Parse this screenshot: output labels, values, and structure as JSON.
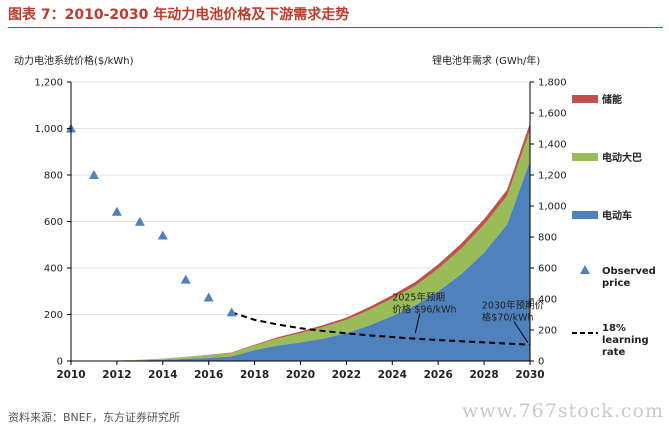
{
  "title": "图表 7：2010-2030 年动力电池价格及下游需求走势",
  "source": "资料来源：BNEF，东方证券研究所",
  "watermark": "www.767stock.com",
  "colors": {
    "title": "#c0392b",
    "storage": "#c0504d",
    "bus": "#9bbb59",
    "car": "#4f81bd",
    "marker": "#4f81bd",
    "learning": "#000000"
  },
  "chart_data": {
    "type": "area",
    "ylabel_left": "动力电池系统价格($/kWh)",
    "ylabel_right": "锂电池年需求 (GWh/年)",
    "x_ticks": [
      2010,
      2012,
      2014,
      2016,
      2018,
      2020,
      2022,
      2024,
      2026,
      2028,
      2030
    ],
    "xlim": [
      2010,
      2030
    ],
    "ylim_left": [
      0,
      1200
    ],
    "ylim_right": [
      0,
      1800
    ],
    "left_ticks": [
      "0",
      "200",
      "400",
      "600",
      "800",
      "1,000",
      "1,200"
    ],
    "right_ticks": [
      "0",
      "200",
      "400",
      "600",
      "800",
      "1,000",
      "1,200",
      "1,400",
      "1,600",
      "1,800"
    ],
    "x": [
      2011,
      2012,
      2013,
      2014,
      2015,
      2016,
      2017,
      2018,
      2019,
      2020,
      2021,
      2022,
      2023,
      2024,
      2025,
      2026,
      2027,
      2028,
      2029,
      2030
    ],
    "series": [
      {
        "name": "电动车",
        "axis": "right",
        "values": [
          1,
          2,
          5,
          8,
          14,
          20,
          30,
          70,
          100,
          120,
          145,
          180,
          230,
          290,
          360,
          450,
          560,
          700,
          880,
          1290
        ]
      },
      {
        "name": "电动大巴",
        "axis": "right",
        "values": [
          0,
          1,
          3,
          6,
          12,
          18,
          22,
          30,
          45,
          60,
          75,
          85,
          100,
          115,
          125,
          145,
          165,
          180,
          185,
          200
        ]
      },
      {
        "name": "储能",
        "axis": "right",
        "values": [
          0,
          0,
          0,
          1,
          1,
          2,
          3,
          5,
          8,
          10,
          12,
          15,
          18,
          20,
          25,
          28,
          32,
          35,
          40,
          45
        ]
      }
    ],
    "observed_price": {
      "name": "Observed price",
      "axis": "left",
      "x": [
        2010,
        2011,
        2012,
        2013,
        2014,
        2015,
        2016,
        2017
      ],
      "y": [
        1000,
        800,
        642,
        599,
        540,
        350,
        273,
        209
      ]
    },
    "learning_rate": {
      "name": "18% learning rate",
      "axis": "left",
      "x": [
        2017,
        2018,
        2019,
        2020,
        2021,
        2022,
        2023,
        2024,
        2025,
        2026,
        2027,
        2028,
        2029,
        2030
      ],
      "y": [
        209,
        177,
        157,
        141,
        129,
        119,
        110,
        103,
        96,
        90,
        85,
        80,
        75,
        70
      ]
    },
    "legend": [
      {
        "label": "储能",
        "kind": "bar",
        "color": "#c0504d"
      },
      {
        "label": "电动大巴",
        "kind": "bar",
        "color": "#9bbb59"
      },
      {
        "label": "电动车",
        "kind": "bar",
        "color": "#4f81bd"
      },
      {
        "label": "Observed price",
        "kind": "triangle",
        "color": "#4f81bd"
      },
      {
        "label": "18% learning rate",
        "kind": "dash",
        "color": "#000000"
      }
    ],
    "annotations": [
      {
        "text": "2025年预期价格 $96/kWh",
        "x": 2025,
        "y": 96
      },
      {
        "text": "2030年预期价格$70/kWh",
        "x": 2030,
        "y": 70
      }
    ]
  }
}
